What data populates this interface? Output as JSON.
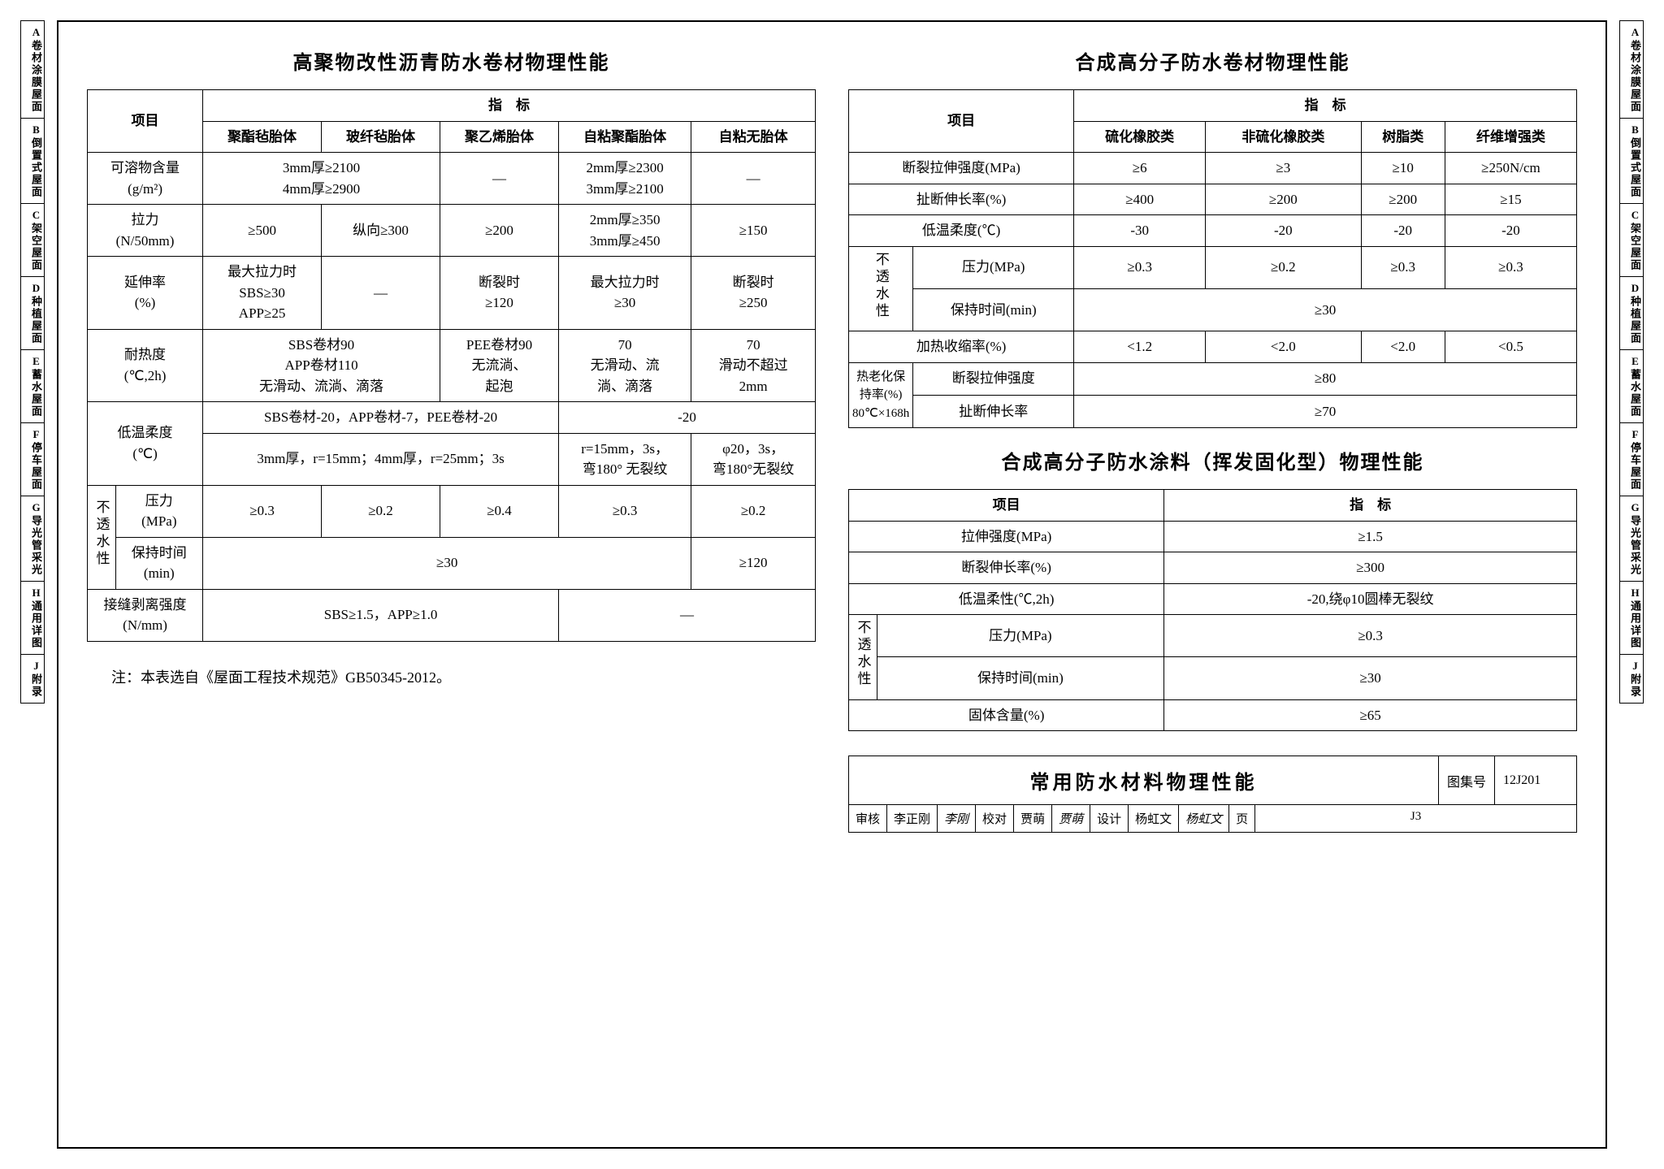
{
  "index_tabs": [
    "A卷材涂膜屋面",
    "B倒置式屋面",
    "C架空屋面",
    "D种植屋面",
    "E蓄水屋面",
    "F停车屋面",
    "G导光管采光",
    "H通用详图",
    "J附录"
  ],
  "left": {
    "title": "高聚物改性沥青防水卷材物理性能",
    "header_item": "项目",
    "header_index": "指　标",
    "cols": [
      "聚酯毡胎体",
      "玻纤毡胎体",
      "聚乙烯胎体",
      "自粘聚酯胎体",
      "自粘无胎体"
    ],
    "r1_label": "可溶物含量\n(g/m²)",
    "r1c1": "3mm厚≥2100\n4mm厚≥2900",
    "r1c2": "—",
    "r1c3": "2mm厚≥2300\n3mm厚≥2100",
    "r1c4": "—",
    "r2_label": "拉力\n(N/50mm)",
    "r2c1": "≥500",
    "r2c2": "纵向≥300",
    "r2c3": "≥200",
    "r2c4": "2mm厚≥350\n3mm厚≥450",
    "r2c5": "≥150",
    "r3_label": "延伸率\n(%)",
    "r3c1": "最大拉力时\nSBS≥30\nAPP≥25",
    "r3c2": "—",
    "r3c3": "断裂时\n≥120",
    "r3c4": "最大拉力时\n≥30",
    "r3c5": "断裂时\n≥250",
    "r4_label": "耐热度\n(℃,2h)",
    "r4c1": "SBS卷材90\nAPP卷材110\n无滑动、流淌、滴落",
    "r4c3": "PEE卷材90\n无流淌、\n起泡",
    "r4c4": "70\n无滑动、流\n淌、滴落",
    "r4c5": "70\n滑动不超过\n2mm",
    "r5_label": "低温柔度\n(℃)",
    "r5a": "SBS卷材-20，APP卷材-7，PEE卷材-20",
    "r5b": "-20",
    "r5c": "3mm厚，r=15mm；4mm厚，r=25mm；3s",
    "r5d": "r=15mm，3s，\n弯180° 无裂纹",
    "r5e": "φ20，3s，\n弯180°无裂纹",
    "r6_vlabel": "不透水性",
    "r6a_label": "压力\n(MPa)",
    "r6a": [
      "≥0.3",
      "≥0.2",
      "≥0.4",
      "≥0.3",
      "≥0.2"
    ],
    "r6b_label": "保持时间\n(min)",
    "r6b_merge": "≥30",
    "r6b_last": "≥120",
    "r7_label": "接缝剥离强度\n(N/mm)",
    "r7a": "SBS≥1.5，APP≥1.0",
    "r7b": "—"
  },
  "right1": {
    "title": "合成高分子防水卷材物理性能",
    "header_item": "项目",
    "header_index": "指　标",
    "cols": [
      "硫化橡胶类",
      "非硫化橡胶类",
      "树脂类",
      "纤维增强类"
    ],
    "rows": [
      [
        "断裂拉伸强度(MPa)",
        "≥6",
        "≥3",
        "≥10",
        "≥250N/cm"
      ],
      [
        "扯断伸长率(%)",
        "≥400",
        "≥200",
        "≥200",
        "≥15"
      ],
      [
        "低温柔度(℃)",
        "-30",
        "-20",
        "-20",
        "-20"
      ]
    ],
    "vlabel": "不透水性",
    "wr1_label": "压力(MPa)",
    "wr1": [
      "≥0.3",
      "≥0.2",
      "≥0.3",
      "≥0.3"
    ],
    "wr2_label": "保持时间(min)",
    "wr2_merge": "≥30",
    "r_shrink": [
      "加热收缩率(%)",
      "<1.2",
      "<2.0",
      "<2.0",
      "<0.5"
    ],
    "aging_vlabel": "热老化保\n持率(%)\n80℃×168h",
    "aging1_label": "断裂拉伸强度",
    "aging1_val": "≥80",
    "aging2_label": "扯断伸长率",
    "aging2_val": "≥70"
  },
  "right2": {
    "title": "合成高分子防水涂料（挥发固化型）物理性能",
    "header_item": "项目",
    "header_index": "指　标",
    "rows": [
      [
        "拉伸强度(MPa)",
        "≥1.5"
      ],
      [
        "断裂伸长率(%)",
        "≥300"
      ],
      [
        "低温柔性(℃,2h)",
        "-20,绕φ10圆棒无裂纹"
      ]
    ],
    "vlabel": "不透水性",
    "wr1": [
      "压力(MPa)",
      "≥0.3"
    ],
    "wr2": [
      "保持时间(min)",
      "≥30"
    ],
    "last": [
      "固体含量(%)",
      "≥65"
    ]
  },
  "note": "注：本表选自《屋面工程技术规范》GB50345-2012。",
  "titleblock": {
    "main": "常用防水材料物理性能",
    "set_label": "图集号",
    "set_no": "12J201",
    "check": "审核",
    "check_name": "李正刚",
    "check_sig": "李刚",
    "proof": "校对",
    "proof_name": "贾萌",
    "proof_sig": "贾萌",
    "design": "设计",
    "design_name": "杨虹文",
    "design_sig": "杨虹文",
    "page_label": "页",
    "page_no": "J3"
  }
}
